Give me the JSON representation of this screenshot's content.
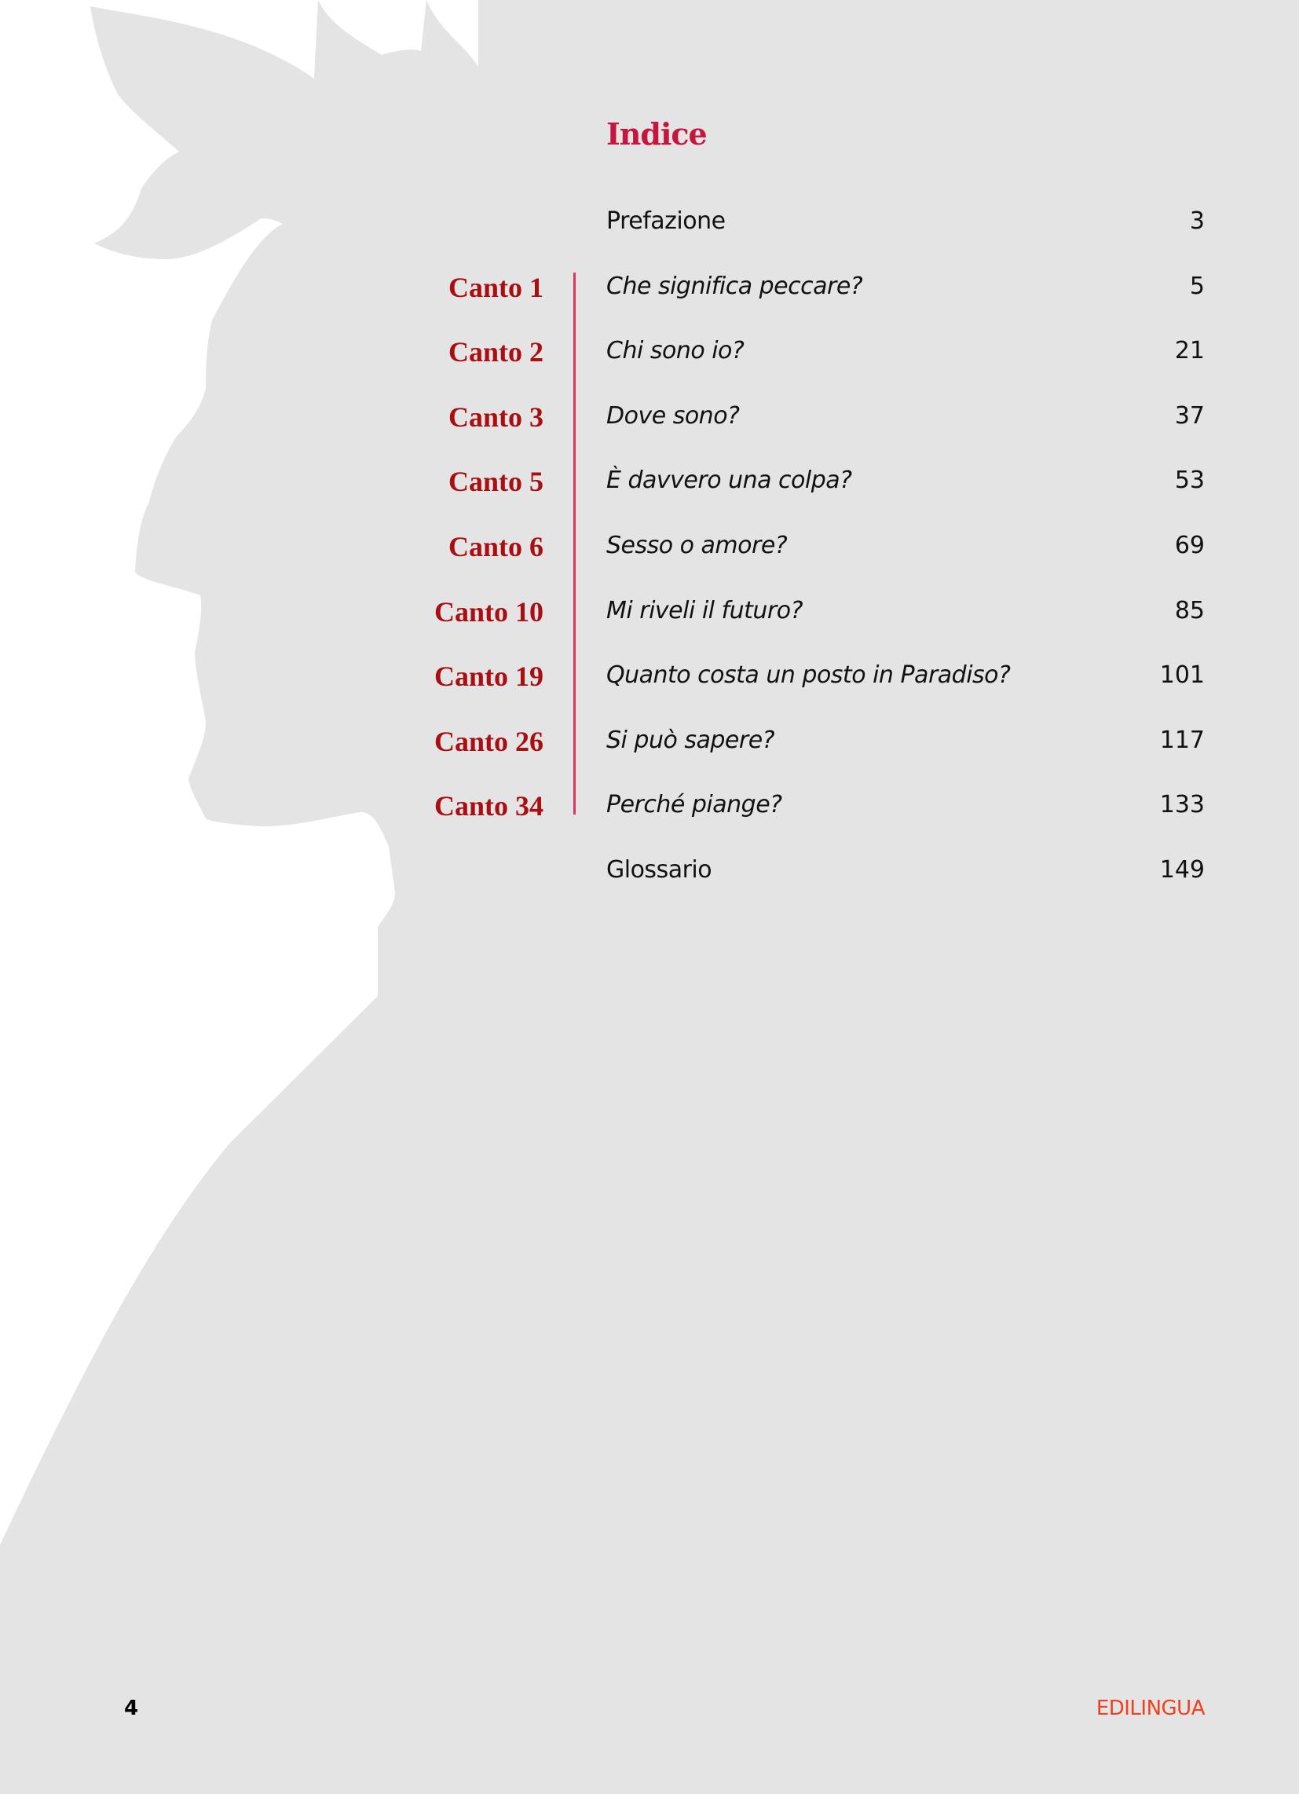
{
  "title": "Indice",
  "entries": [
    {
      "canto": "",
      "title": "Prefazione",
      "page": "3",
      "italic": false
    },
    {
      "canto": "Canto 1",
      "title": "Che significa peccare?",
      "page": "5",
      "italic": true
    },
    {
      "canto": "Canto 2",
      "title": "Chi sono io?",
      "page": "21",
      "italic": true
    },
    {
      "canto": "Canto 3",
      "title": "Dove sono?",
      "page": "37",
      "italic": true
    },
    {
      "canto": "Canto 5",
      "title": "È davvero una colpa?",
      "page": "53",
      "italic": true
    },
    {
      "canto": "Canto 6",
      "title": "Sesso o amore?",
      "page": "69",
      "italic": true
    },
    {
      "canto": "Canto 10",
      "title": "Mi riveli il futuro?",
      "page": "85",
      "italic": true
    },
    {
      "canto": "Canto 19",
      "title": "Quanto costa un posto in Paradiso?",
      "page": "101",
      "italic": true
    },
    {
      "canto": "Canto 26",
      "title": "Si può sapere?",
      "page": "117",
      "italic": true
    },
    {
      "canto": "Canto 34",
      "title": "Perché piange?",
      "page": "133",
      "italic": true
    },
    {
      "canto": "",
      "title": "Glossario",
      "page": "149",
      "italic": false
    }
  ],
  "footer": {
    "page_number": "4",
    "publisher_logo": "EDILINGUA"
  },
  "colors": {
    "title": "#c4163f",
    "canto": "#a80e12",
    "divider": "#e0345a",
    "silhouette": "#e4e4e4",
    "logo": "#f0401e"
  }
}
